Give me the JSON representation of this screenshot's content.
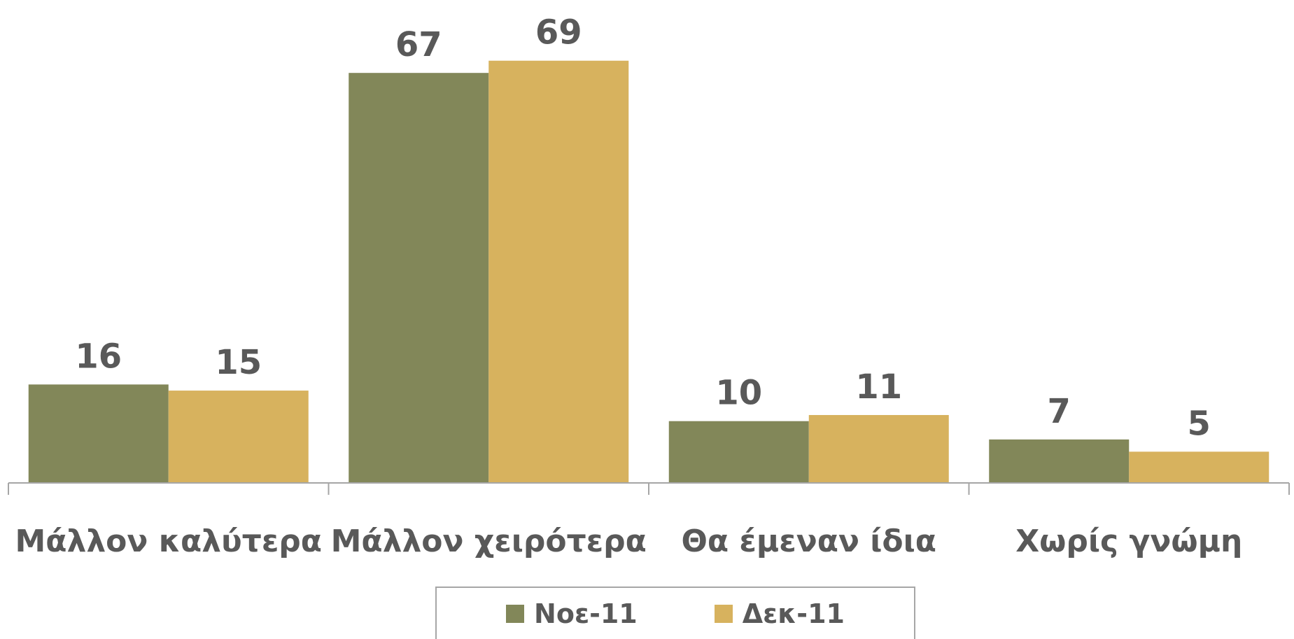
{
  "chart_data": {
    "type": "bar",
    "categories": [
      "Μάλλον καλύτερα",
      "Μάλλον χειρότερα",
      "Θα έμεναν ίδια",
      "Χωρίς γνώμη"
    ],
    "series": [
      {
        "name": "Νοε-11",
        "values": [
          16,
          67,
          10,
          7
        ],
        "color": "#828759"
      },
      {
        "name": "Δεκ-11",
        "values": [
          15,
          69,
          11,
          5
        ],
        "color": "#d7b25e"
      }
    ],
    "ylim": [
      0,
      70
    ],
    "grid": false,
    "legend": "bottom",
    "axis_color": "#a6a6a6",
    "label_color": "#595959"
  }
}
